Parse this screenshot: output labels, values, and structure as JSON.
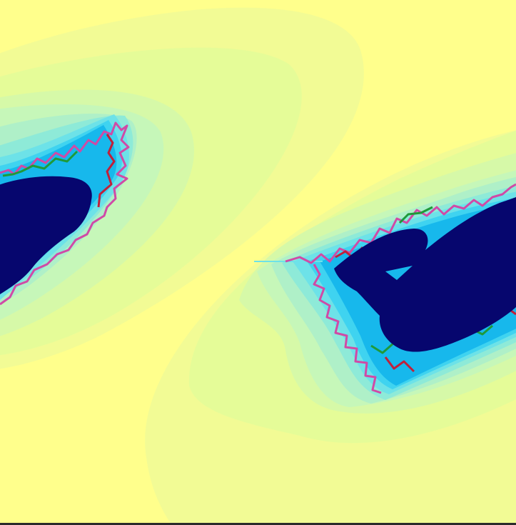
{
  "image": {
    "subject": "fractal-render",
    "palette": {
      "background": "#ffff8c",
      "band_1": "#f2fb95",
      "band_2": "#e5fc98",
      "band_3": "#d6f9a8",
      "band_4": "#c6f7b9",
      "band_5": "#aff0c8",
      "band_6": "#8eead8",
      "band_7": "#6de2e8",
      "band_8": "#3fd3f0",
      "band_9": "#17b8ec",
      "core": "#06066e",
      "edge_magenta": "#d04aa6",
      "edge_green": "#1f9a3a",
      "edge_red": "#c0203a"
    },
    "lobes": [
      "left-lobe",
      "right-lobe"
    ]
  }
}
